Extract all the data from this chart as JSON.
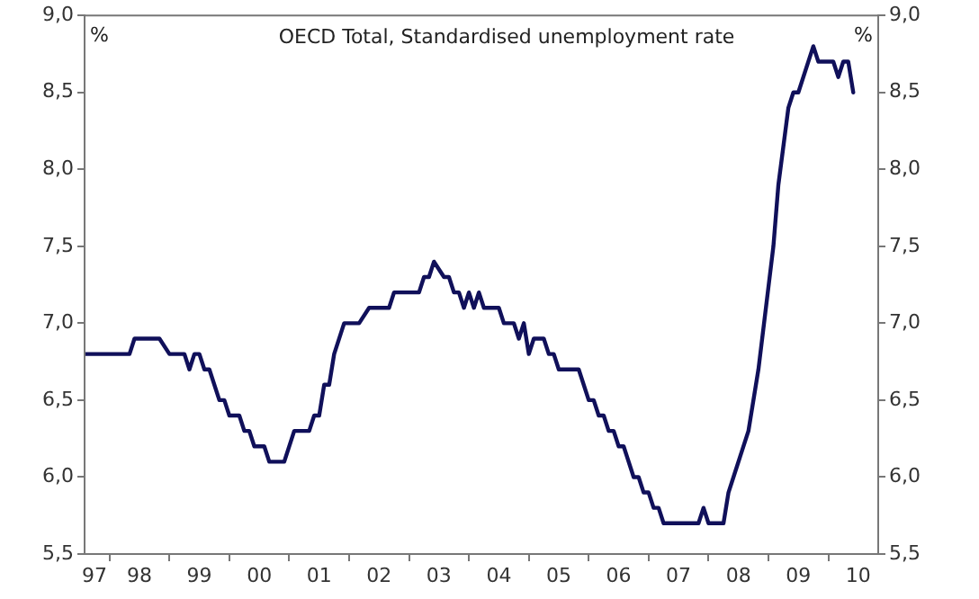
{
  "chart_data": {
    "type": "line",
    "title": "OECD Total, Standardised unemployment rate",
    "ylabel": "%",
    "y2label": "%",
    "x": [
      "1997-08",
      "1998-05",
      "1998-06",
      "1998-11",
      "1999-01",
      "1999-04",
      "1999-05",
      "1999-06",
      "1999-07",
      "1999-08",
      "1999-09",
      "1999-11",
      "1999-12",
      "2000-01",
      "2000-03",
      "2000-04",
      "2000-05",
      "2000-06",
      "2000-08",
      "2000-09",
      "2000-12",
      "2001-02",
      "2001-05",
      "2001-06",
      "2001-07",
      "2001-08",
      "2001-09",
      "2001-10",
      "2001-12",
      "2002-03",
      "2002-05",
      "2002-09",
      "2002-10",
      "2003-03",
      "2003-04",
      "2003-05",
      "2003-06",
      "2003-08",
      "2003-09",
      "2003-10",
      "2003-11",
      "2003-12",
      "2004-01",
      "2004-02",
      "2004-03",
      "2004-04",
      "2004-07",
      "2004-08",
      "2004-10",
      "2004-11",
      "2004-12",
      "2005-01",
      "2005-02",
      "2005-04",
      "2005-05",
      "2005-06",
      "2005-07",
      "2005-11",
      "2006-01",
      "2006-02",
      "2006-03",
      "2006-04",
      "2006-05",
      "2006-06",
      "2006-07",
      "2006-08",
      "2006-10",
      "2006-11",
      "2006-12",
      "2007-01",
      "2007-02",
      "2007-03",
      "2007-04",
      "2007-11",
      "2007-12",
      "2008-01",
      "2008-04",
      "2008-05",
      "2008-06",
      "2008-09",
      "2008-11",
      "2009-02",
      "2009-03",
      "2009-05",
      "2009-06",
      "2009-07",
      "2009-10",
      "2009-11",
      "2010-02",
      "2010-03",
      "2010-04",
      "2010-05",
      "2010-06"
    ],
    "series": [
      {
        "color": "#10105a",
        "values": [
          6.8,
          6.8,
          6.9,
          6.9,
          6.8,
          6.8,
          6.7,
          6.8,
          6.8,
          6.7,
          6.7,
          6.5,
          6.5,
          6.4,
          6.4,
          6.3,
          6.3,
          6.2,
          6.2,
          6.1,
          6.1,
          6.3,
          6.3,
          6.4,
          6.4,
          6.6,
          6.6,
          6.8,
          7.0,
          7.0,
          7.1,
          7.1,
          7.2,
          7.2,
          7.3,
          7.3,
          7.4,
          7.3,
          7.3,
          7.2,
          7.2,
          7.1,
          7.2,
          7.1,
          7.2,
          7.1,
          7.1,
          7.0,
          7.0,
          6.9,
          7.0,
          6.8,
          6.9,
          6.9,
          6.8,
          6.8,
          6.7,
          6.7,
          6.5,
          6.5,
          6.4,
          6.4,
          6.3,
          6.3,
          6.2,
          6.2,
          6.0,
          6.0,
          5.9,
          5.9,
          5.8,
          5.8,
          5.7,
          5.7,
          5.8,
          5.7,
          5.7,
          5.9,
          6.0,
          6.3,
          6.7,
          7.5,
          7.9,
          8.4,
          8.5,
          8.5,
          8.8,
          8.7,
          8.7,
          8.6,
          8.7,
          8.7,
          8.5
        ]
      }
    ],
    "xlim": [
      "1997-08",
      "2010-11"
    ],
    "xticks": [
      {
        "value": "1997-10",
        "label": "97"
      },
      {
        "value": "1998",
        "label": null
      },
      {
        "value": "1998-07",
        "label": "98"
      },
      {
        "value": "1999",
        "label": null
      },
      {
        "value": "1999-07",
        "label": "99"
      },
      {
        "value": "2000",
        "label": null
      },
      {
        "value": "2000-07",
        "label": "00"
      },
      {
        "value": "2001",
        "label": null
      },
      {
        "value": "2001-07",
        "label": "01"
      },
      {
        "value": "2002",
        "label": null
      },
      {
        "value": "2002-07",
        "label": "02"
      },
      {
        "value": "2003",
        "label": null
      },
      {
        "value": "2003-07",
        "label": "03"
      },
      {
        "value": "2004",
        "label": null
      },
      {
        "value": "2004-07",
        "label": "04"
      },
      {
        "value": "2005",
        "label": null
      },
      {
        "value": "2005-07",
        "label": "05"
      },
      {
        "value": "2006",
        "label": null
      },
      {
        "value": "2006-07",
        "label": "06"
      },
      {
        "value": "2007",
        "label": null
      },
      {
        "value": "2007-07",
        "label": "07"
      },
      {
        "value": "2008",
        "label": null
      },
      {
        "value": "2008-07",
        "label": "08"
      },
      {
        "value": "2009",
        "label": null
      },
      {
        "value": "2009-07",
        "label": "09"
      },
      {
        "value": "2010",
        "label": null
      },
      {
        "value": "2010-07",
        "label": "10"
      }
    ],
    "ylim": [
      5.5,
      9.0
    ],
    "yticks": [
      {
        "value": 5.5,
        "label": "5,5"
      },
      {
        "value": 6.0,
        "label": "6,0"
      },
      {
        "value": 6.5,
        "label": "6,5"
      },
      {
        "value": 7.0,
        "label": "7,0"
      },
      {
        "value": 7.5,
        "label": "7,5"
      },
      {
        "value": 8.0,
        "label": "8,0"
      },
      {
        "value": 8.5,
        "label": "8,5"
      },
      {
        "value": 9.0,
        "label": "9,0"
      }
    ],
    "y2lim": [
      5.5,
      9.0
    ],
    "y2ticks": [
      {
        "value": 5.5,
        "label": "5,5"
      },
      {
        "value": 6.0,
        "label": "6,0"
      },
      {
        "value": 6.5,
        "label": "6,5"
      },
      {
        "value": 7.0,
        "label": "7,0"
      },
      {
        "value": 7.5,
        "label": "7,5"
      },
      {
        "value": 8.0,
        "label": "8,0"
      },
      {
        "value": 8.5,
        "label": "8,5"
      },
      {
        "value": 9.0,
        "label": "9,0"
      }
    ],
    "grid": false,
    "legend": false,
    "marker": "none",
    "line_style": "solid"
  }
}
